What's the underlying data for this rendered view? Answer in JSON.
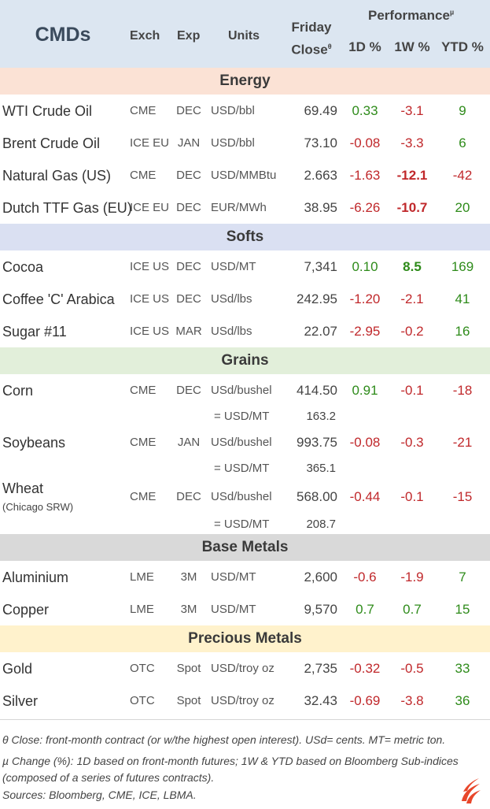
{
  "header": {
    "title": "CMDs",
    "exch": "Exch",
    "exp": "Exp",
    "units": "Units",
    "friday_line1": "Friday",
    "friday_line2": "Close",
    "friday_mark": "θ",
    "performance": "Performance",
    "performance_mark": "µ",
    "col_1d": "1D %",
    "col_1w": "1W %",
    "col_ytd": "YTD %"
  },
  "colors": {
    "header_bg": "#dce6f1",
    "energy_bg": "#fbe2d5",
    "softs_bg": "#dae0f2",
    "grains_bg": "#e2efda",
    "base_bg": "#d9d9d9",
    "precious_bg": "#fff2cc",
    "positive": "#2e8b1a",
    "negative": "#c0282b",
    "logo": "#e8462a"
  },
  "sections": {
    "energy": "Energy",
    "softs": "Softs",
    "grains": "Grains",
    "base": "Base Metals",
    "precious": "Precious Metals"
  },
  "rows": {
    "wti": {
      "name": "WTI Crude Oil",
      "exch": "CME",
      "exp": "DEC",
      "units": "USD/bbl",
      "close": "69.49",
      "d1": "0.33",
      "w1": "-3.1",
      "ytd": "9"
    },
    "brent": {
      "name": "Brent Crude Oil",
      "exch": "ICE EU",
      "exp": "JAN",
      "units": "USD/bbl",
      "close": "73.10",
      "d1": "-0.08",
      "w1": "-3.3",
      "ytd": "6"
    },
    "natgas": {
      "name": "Natural Gas (US)",
      "exch": "CME",
      "exp": "DEC",
      "units": "USD/MMBtu",
      "close": "2.663",
      "d1": "-1.63",
      "w1": "-12.1",
      "ytd": "-42"
    },
    "ttf": {
      "name": "Dutch TTF Gas (EU)",
      "exch": "ICE EU",
      "exp": "DEC",
      "units": "EUR/MWh",
      "close": "38.95",
      "d1": "-6.26",
      "w1": "-10.7",
      "ytd": "20"
    },
    "cocoa": {
      "name": "Cocoa",
      "exch": "ICE US",
      "exp": "DEC",
      "units": "USD/MT",
      "close": "7,341",
      "d1": "0.10",
      "w1": "8.5",
      "ytd": "169"
    },
    "coffee": {
      "name": "Coffee 'C' Arabica",
      "exch": "ICE US",
      "exp": "DEC",
      "units": "USd/lbs",
      "close": "242.95",
      "d1": "-1.20",
      "w1": "-2.1",
      "ytd": "41"
    },
    "sugar": {
      "name": "Sugar #11",
      "exch": "ICE US",
      "exp": "MAR",
      "units": "USd/lbs",
      "close": "22.07",
      "d1": "-2.95",
      "w1": "-0.2",
      "ytd": "16"
    },
    "corn": {
      "name": "Corn",
      "exch": "CME",
      "exp": "DEC",
      "units": "USd/bushel",
      "close": "414.50",
      "d1": "0.91",
      "w1": "-0.1",
      "ytd": "-18",
      "conv_units": "= USD/MT",
      "conv_close": "163.2"
    },
    "soybeans": {
      "name": "Soybeans",
      "exch": "CME",
      "exp": "JAN",
      "units": "USd/bushel",
      "close": "993.75",
      "d1": "-0.08",
      "w1": "-0.3",
      "ytd": "-21",
      "conv_units": "= USD/MT",
      "conv_close": "365.1"
    },
    "wheat": {
      "name": "Wheat",
      "sub": "(Chicago SRW)",
      "exch": "CME",
      "exp": "DEC",
      "units": "USd/bushel",
      "close": "568.00",
      "d1": "-0.44",
      "w1": "-0.1",
      "ytd": "-15",
      "conv_units": "= USD/MT",
      "conv_close": "208.7"
    },
    "aluminium": {
      "name": "Aluminium",
      "exch": "LME",
      "exp": "3M",
      "units": "USD/MT",
      "close": "2,600",
      "d1": "-0.6",
      "w1": "-1.9",
      "ytd": "7"
    },
    "copper": {
      "name": "Copper",
      "exch": "LME",
      "exp": "3M",
      "units": "USD/MT",
      "close": "9,570",
      "d1": "0.7",
      "w1": "0.7",
      "ytd": "15"
    },
    "gold": {
      "name": "Gold",
      "exch": "OTC",
      "exp": "Spot",
      "units": "USD/troy oz",
      "close": "2,735",
      "d1": "-0.32",
      "w1": "-0.5",
      "ytd": "33"
    },
    "silver": {
      "name": "Silver",
      "exch": "OTC",
      "exp": "Spot",
      "units": "USD/troy oz",
      "close": "32.43",
      "d1": "-0.69",
      "w1": "-3.8",
      "ytd": "36"
    }
  },
  "footnotes": {
    "line1": "θ Close: front-month contract (or w/the highest open interest). USd= cents. MT= metric ton.",
    "line2": "µ Change (%): 1D based on front-month futures; 1W & YTD based on Bloomberg Sub-indices",
    "line3": "(composed of a series of futures contracts).",
    "line4": "Sources: Bloomberg, CME, ICE, LBMA."
  },
  "logo_icon": "flame-logo-icon"
}
